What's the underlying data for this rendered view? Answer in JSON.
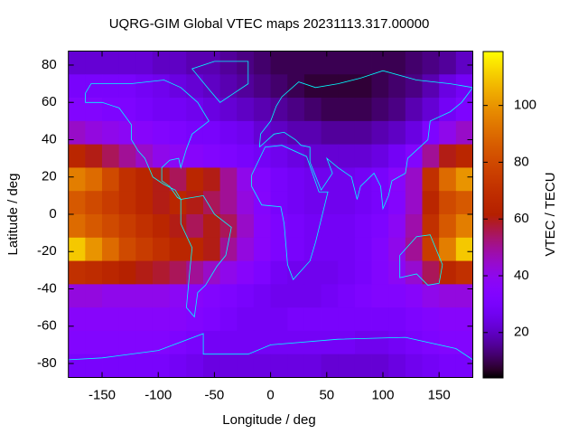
{
  "chart_data": {
    "type": "heatmap",
    "title": "UQRG-GIM Global VTEC maps 20231113.317.00000",
    "x_label": "Longitude / deg",
    "y_label": "Latitude / deg",
    "z_label": "VTEC / TECU",
    "colormap": "gnuplot",
    "xlim": [
      -180,
      180
    ],
    "ylim": [
      -87.5,
      87.5
    ],
    "zlim": [
      4,
      119
    ],
    "xticks": [
      -150,
      -100,
      -50,
      0,
      50,
      100,
      150
    ],
    "yticks": [
      -80,
      -60,
      -40,
      -20,
      0,
      20,
      40,
      60,
      80
    ],
    "zticks": [
      20,
      40,
      60,
      80,
      100
    ],
    "x": [
      -172.5,
      -157.5,
      -142.5,
      -127.5,
      -112.5,
      -97.5,
      -82.5,
      -67.5,
      -52.5,
      -37.5,
      -22.5,
      -7.5,
      7.5,
      22.5,
      37.5,
      52.5,
      67.5,
      82.5,
      97.5,
      112.5,
      127.5,
      142.5,
      157.5,
      172.5
    ],
    "y": [
      81.25,
      68.75,
      56.25,
      43.75,
      31.25,
      18.75,
      6.25,
      -6.25,
      -18.75,
      -31.25,
      -43.75,
      -56.25,
      -68.75,
      -81.25
    ],
    "z": [
      [
        22,
        22,
        22,
        22,
        22,
        20,
        20,
        18,
        18,
        16,
        14,
        12,
        10,
        10,
        10,
        10,
        10,
        10,
        10,
        10,
        12,
        14,
        16,
        20
      ],
      [
        30,
        30,
        30,
        30,
        28,
        26,
        24,
        22,
        20,
        18,
        16,
        14,
        12,
        10,
        8,
        8,
        8,
        8,
        10,
        12,
        14,
        18,
        24,
        28
      ],
      [
        34,
        34,
        32,
        32,
        30,
        28,
        28,
        26,
        24,
        22,
        20,
        18,
        16,
        14,
        12,
        10,
        10,
        10,
        12,
        14,
        18,
        22,
        28,
        32
      ],
      [
        45,
        42,
        40,
        38,
        36,
        34,
        32,
        30,
        30,
        28,
        26,
        22,
        20,
        18,
        18,
        16,
        16,
        16,
        18,
        20,
        24,
        32,
        40,
        45
      ],
      [
        65,
        60,
        55,
        50,
        45,
        40,
        38,
        36,
        34,
        32,
        30,
        28,
        26,
        24,
        22,
        22,
        22,
        22,
        24,
        28,
        34,
        50,
        60,
        65
      ],
      [
        95,
        90,
        80,
        70,
        65,
        60,
        55,
        65,
        60,
        50,
        40,
        34,
        30,
        28,
        26,
        26,
        26,
        28,
        30,
        36,
        45,
        70,
        90,
        100
      ],
      [
        85,
        80,
        75,
        70,
        65,
        60,
        65,
        60,
        55,
        50,
        42,
        35,
        30,
        28,
        26,
        26,
        26,
        28,
        30,
        35,
        45,
        65,
        80,
        85
      ],
      [
        90,
        85,
        80,
        75,
        70,
        65,
        60,
        55,
        60,
        55,
        45,
        36,
        32,
        30,
        28,
        28,
        28,
        30,
        32,
        38,
        48,
        70,
        85,
        95
      ],
      [
        110,
        100,
        90,
        80,
        75,
        70,
        65,
        65,
        60,
        50,
        42,
        36,
        32,
        30,
        28,
        28,
        28,
        30,
        34,
        40,
        50,
        75,
        95,
        110
      ],
      [
        70,
        68,
        65,
        62,
        60,
        58,
        55,
        50,
        45,
        40,
        36,
        32,
        28,
        26,
        26,
        26,
        28,
        30,
        34,
        38,
        44,
        55,
        65,
        70
      ],
      [
        42,
        42,
        40,
        40,
        40,
        40,
        38,
        36,
        34,
        32,
        30,
        28,
        26,
        26,
        26,
        28,
        30,
        32,
        34,
        34,
        36,
        40,
        42,
        42
      ],
      [
        36,
        36,
        36,
        36,
        36,
        36,
        36,
        34,
        32,
        30,
        28,
        28,
        28,
        30,
        30,
        30,
        30,
        30,
        30,
        30,
        32,
        34,
        36,
        36
      ],
      [
        34,
        34,
        34,
        34,
        34,
        34,
        32,
        30,
        28,
        28,
        28,
        28,
        28,
        28,
        28,
        28,
        28,
        26,
        26,
        28,
        30,
        32,
        34,
        34
      ],
      [
        30,
        30,
        30,
        30,
        30,
        30,
        28,
        26,
        24,
        24,
        24,
        24,
        24,
        24,
        24,
        22,
        22,
        22,
        22,
        24,
        26,
        28,
        30,
        30
      ]
    ]
  }
}
